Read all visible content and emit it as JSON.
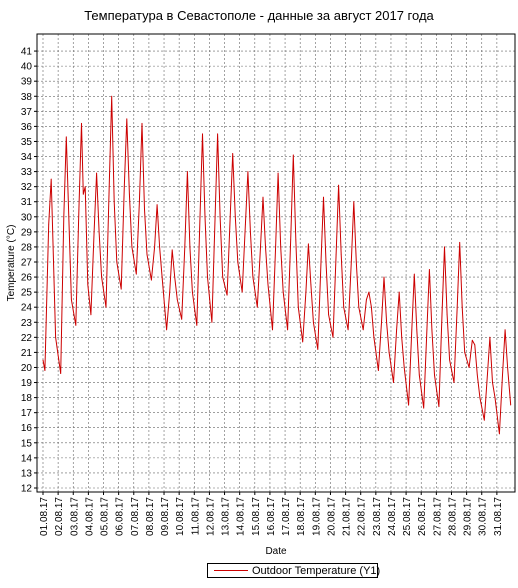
{
  "chart_data": {
    "type": "line",
    "title": "Температура в Севастополе - данные за август 2017 года",
    "xlabel": "Date",
    "ylabel": "Temperature (°C)",
    "ylim": [
      12,
      42
    ],
    "xlim": [
      "2017-08-01",
      "2017-09-01"
    ],
    "y_ticks": [
      12,
      13,
      14,
      15,
      16,
      17,
      18,
      19,
      20,
      21,
      22,
      23,
      24,
      25,
      26,
      27,
      28,
      29,
      30,
      31,
      32,
      33,
      34,
      35,
      36,
      37,
      38,
      39,
      40,
      41
    ],
    "x_tick_labels": [
      "01.08.17",
      "02.08.17",
      "03.08.17",
      "04.08.17",
      "05.08.17",
      "06.08.17",
      "07.08.17",
      "08.08.17",
      "09.08.17",
      "10.08.17",
      "11.08.17",
      "12.08.17",
      "13.08.17",
      "14.08.17",
      "15.08.17",
      "16.08.17",
      "17.08.17",
      "18.08.17",
      "19.08.17",
      "20.08.17",
      "21.08.17",
      "22.08.17",
      "23.08.17",
      "24.08.17",
      "25.08.17",
      "26.08.17",
      "27.08.17",
      "28.08.17",
      "29.08.17",
      "30.08.17",
      "31.08.17"
    ],
    "grid": true,
    "legend_position": "bottom-center",
    "series": [
      {
        "name": "Outdoor Temperature (Y1)",
        "color": "#cc0000",
        "points": [
          [
            "01.08.17 00:00",
            20.5
          ],
          [
            "01.08.17 03:00",
            19.8
          ],
          [
            "01.08.17 09:00",
            29.5
          ],
          [
            "01.08.17 13:00",
            32.5
          ],
          [
            "01.08.17 16:00",
            28.0
          ],
          [
            "01.08.17 20:00",
            22.0
          ],
          [
            "02.08.17 04:00",
            19.6
          ],
          [
            "02.08.17 09:00",
            30.0
          ],
          [
            "02.08.17 13:00",
            35.3
          ],
          [
            "02.08.17 17:00",
            30.0
          ],
          [
            "02.08.17 21:00",
            24.5
          ],
          [
            "03.08.17 04:00",
            22.8
          ],
          [
            "03.08.17 09:00",
            30.5
          ],
          [
            "03.08.17 13:00",
            36.2
          ],
          [
            "03.08.17 16:00",
            31.5
          ],
          [
            "03.08.17 19:00",
            32.0
          ],
          [
            "03.08.17 23:00",
            25.5
          ],
          [
            "04.08.17 04:00",
            23.5
          ],
          [
            "04.08.17 09:00",
            29.0
          ],
          [
            "04.08.17 13:00",
            32.9
          ],
          [
            "04.08.17 17:00",
            29.0
          ],
          [
            "04.08.17 21:00",
            26.0
          ],
          [
            "05.08.17 04:00",
            24.0
          ],
          [
            "05.08.17 09:00",
            32.0
          ],
          [
            "05.08.17 13:00",
            38.0
          ],
          [
            "05.08.17 17:00",
            31.0
          ],
          [
            "05.08.17 21:00",
            27.0
          ],
          [
            "06.08.17 04:00",
            25.2
          ],
          [
            "06.08.17 09:00",
            32.0
          ],
          [
            "06.08.17 13:00",
            36.5
          ],
          [
            "06.08.17 17:00",
            31.5
          ],
          [
            "06.08.17 21:00",
            28.0
          ],
          [
            "07.08.17 04:00",
            26.2
          ],
          [
            "07.08.17 09:00",
            31.0
          ],
          [
            "07.08.17 13:00",
            36.2
          ],
          [
            "07.08.17 17:00",
            30.5
          ],
          [
            "07.08.17 21:00",
            27.5
          ],
          [
            "08.08.17 04:00",
            25.8
          ],
          [
            "08.08.17 09:00",
            28.0
          ],
          [
            "08.08.17 13:00",
            30.8
          ],
          [
            "08.08.17 17:00",
            28.0
          ],
          [
            "08.08.17 21:00",
            26.0
          ],
          [
            "09.08.17 04:00",
            22.5
          ],
          [
            "09.08.17 09:00",
            25.0
          ],
          [
            "09.08.17 13:00",
            27.8
          ],
          [
            "09.08.17 17:00",
            26.0
          ],
          [
            "09.08.17 21:00",
            24.5
          ],
          [
            "10.08.17 04:00",
            23.2
          ],
          [
            "10.08.17 09:00",
            28.0
          ],
          [
            "10.08.17 13:00",
            33.0
          ],
          [
            "10.08.17 17:00",
            28.0
          ],
          [
            "10.08.17 21:00",
            25.0
          ],
          [
            "11.08.17 04:00",
            22.8
          ],
          [
            "11.08.17 09:00",
            30.0
          ],
          [
            "11.08.17 13:00",
            35.5
          ],
          [
            "11.08.17 17:00",
            30.0
          ],
          [
            "11.08.17 21:00",
            26.0
          ],
          [
            "12.08.17 04:00",
            23.0
          ],
          [
            "12.08.17 09:00",
            30.0
          ],
          [
            "12.08.17 13:00",
            35.5
          ],
          [
            "12.08.17 17:00",
            30.0
          ],
          [
            "12.08.17 21:00",
            26.0
          ],
          [
            "13.08.17 04:00",
            24.8
          ],
          [
            "13.08.17 09:00",
            30.0
          ],
          [
            "13.08.17 13:00",
            34.2
          ],
          [
            "13.08.17 17:00",
            30.0
          ],
          [
            "13.08.17 21:00",
            27.0
          ],
          [
            "14.08.17 04:00",
            25.0
          ],
          [
            "14.08.17 09:00",
            29.5
          ],
          [
            "14.08.17 13:00",
            33.0
          ],
          [
            "14.08.17 17:00",
            29.0
          ],
          [
            "14.08.17 21:00",
            26.0
          ],
          [
            "15.08.17 04:00",
            24.0
          ],
          [
            "15.08.17 09:00",
            28.0
          ],
          [
            "15.08.17 13:00",
            31.3
          ],
          [
            "15.08.17 17:00",
            28.0
          ],
          [
            "15.08.17 21:00",
            25.5
          ],
          [
            "16.08.17 04:00",
            22.5
          ],
          [
            "16.08.17 09:00",
            28.0
          ],
          [
            "16.08.17 13:00",
            32.9
          ],
          [
            "16.08.17 17:00",
            28.0
          ],
          [
            "16.08.17 21:00",
            25.0
          ],
          [
            "17.08.17 04:00",
            22.5
          ],
          [
            "17.08.17 09:00",
            28.5
          ],
          [
            "17.08.17 13:00",
            34.1
          ],
          [
            "17.08.17 17:00",
            28.5
          ],
          [
            "17.08.17 21:00",
            24.0
          ],
          [
            "18.08.17 04:00",
            21.7
          ],
          [
            "18.08.17 09:00",
            25.0
          ],
          [
            "18.08.17 13:00",
            28.2
          ],
          [
            "18.08.17 17:00",
            25.5
          ],
          [
            "18.08.17 21:00",
            23.0
          ],
          [
            "19.08.17 04:00",
            21.2
          ],
          [
            "19.08.17 09:00",
            27.0
          ],
          [
            "19.08.17 13:00",
            31.3
          ],
          [
            "19.08.17 17:00",
            27.0
          ],
          [
            "19.08.17 21:00",
            23.5
          ],
          [
            "20.08.17 04:00",
            22.0
          ],
          [
            "20.08.17 09:00",
            27.5
          ],
          [
            "20.08.17 13:00",
            32.1
          ],
          [
            "20.08.17 17:00",
            27.5
          ],
          [
            "20.08.17 21:00",
            24.0
          ],
          [
            "21.08.17 04:00",
            22.5
          ],
          [
            "21.08.17 09:00",
            27.0
          ],
          [
            "21.08.17 13:00",
            31.0
          ],
          [
            "21.08.17 17:00",
            27.0
          ],
          [
            "21.08.17 21:00",
            24.0
          ],
          [
            "22.08.17 04:00",
            22.5
          ],
          [
            "22.08.17 09:00",
            24.5
          ],
          [
            "22.08.17 13:00",
            25.0
          ],
          [
            "22.08.17 17:00",
            24.0
          ],
          [
            "22.08.17 21:00",
            22.0
          ],
          [
            "23.08.17 04:00",
            19.8
          ],
          [
            "23.08.17 09:00",
            23.0
          ],
          [
            "23.08.17 13:00",
            26.0
          ],
          [
            "23.08.17 17:00",
            23.0
          ],
          [
            "23.08.17 21:00",
            21.0
          ],
          [
            "24.08.17 04:00",
            19.0
          ],
          [
            "24.08.17 09:00",
            22.5
          ],
          [
            "24.08.17 13:00",
            25.0
          ],
          [
            "24.08.17 17:00",
            22.0
          ],
          [
            "24.08.17 21:00",
            20.0
          ],
          [
            "25.08.17 04:00",
            17.5
          ],
          [
            "25.08.17 09:00",
            22.5
          ],
          [
            "25.08.17 13:00",
            26.2
          ],
          [
            "25.08.17 17:00",
            22.5
          ],
          [
            "25.08.17 21:00",
            19.5
          ],
          [
            "26.08.17 04:00",
            17.3
          ],
          [
            "26.08.17 09:00",
            22.5
          ],
          [
            "26.08.17 13:00",
            26.5
          ],
          [
            "26.08.17 17:00",
            22.5
          ],
          [
            "26.08.17 21:00",
            19.5
          ],
          [
            "27.08.17 04:00",
            17.4
          ],
          [
            "27.08.17 09:00",
            23.5
          ],
          [
            "27.08.17 13:00",
            28.0
          ],
          [
            "27.08.17 17:00",
            23.5
          ],
          [
            "27.08.17 21:00",
            20.5
          ],
          [
            "28.08.17 04:00",
            19.0
          ],
          [
            "28.08.17 09:00",
            24.0
          ],
          [
            "28.08.17 13:00",
            28.3
          ],
          [
            "28.08.17 17:00",
            24.0
          ],
          [
            "28.08.17 21:00",
            21.0
          ],
          [
            "29.08.17 04:00",
            20.0
          ],
          [
            "29.08.17 09:00",
            21.8
          ],
          [
            "29.08.17 13:00",
            21.5
          ],
          [
            "29.08.17 17:00",
            19.5
          ],
          [
            "29.08.17 21:00",
            18.0
          ],
          [
            "30.08.17 04:00",
            16.5
          ],
          [
            "30.08.17 09:00",
            19.5
          ],
          [
            "30.08.17 13:00",
            22.0
          ],
          [
            "30.08.17 17:00",
            19.0
          ],
          [
            "30.08.17 21:00",
            18.0
          ],
          [
            "31.08.17 04:00",
            15.6
          ],
          [
            "31.08.17 09:00",
            19.5
          ],
          [
            "31.08.17 13:00",
            22.5
          ],
          [
            "31.08.17 17:00",
            20.0
          ],
          [
            "31.08.17 22:00",
            17.5
          ]
        ]
      }
    ]
  }
}
